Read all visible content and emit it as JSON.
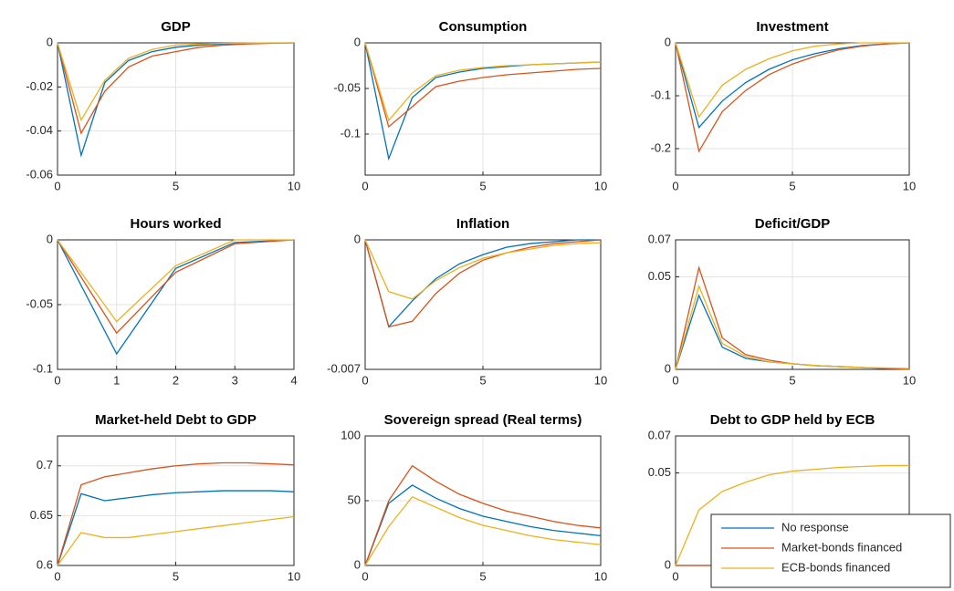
{
  "chart_data": [
    {
      "type": "line",
      "title": "GDP",
      "x": [
        0,
        1,
        2,
        3,
        4,
        5,
        6,
        7,
        8,
        9,
        10
      ],
      "xlim": [
        0,
        10
      ],
      "xticks": [
        0,
        5,
        10
      ],
      "ylim": [
        -0.06,
        0
      ],
      "yticks": [
        -0.06,
        -0.04,
        -0.02,
        0
      ],
      "grid": true,
      "series": [
        {
          "color": "#0072BD",
          "values": [
            0,
            -0.051,
            -0.018,
            -0.008,
            -0.004,
            -0.002,
            -0.001,
            -0.0005,
            -0.0002,
            -0.0001,
            0
          ]
        },
        {
          "color": "#D95319",
          "values": [
            0,
            -0.041,
            -0.022,
            -0.011,
            -0.006,
            -0.004,
            -0.002,
            -0.001,
            -0.0005,
            -0.0002,
            0
          ]
        },
        {
          "color": "#EDB120",
          "values": [
            0,
            -0.035,
            -0.017,
            -0.007,
            -0.003,
            -0.001,
            -0.0005,
            -0.0002,
            -0.0001,
            0,
            0
          ]
        }
      ]
    },
    {
      "type": "line",
      "title": "Consumption",
      "x": [
        0,
        1,
        2,
        3,
        4,
        5,
        6,
        7,
        8,
        9,
        10
      ],
      "xlim": [
        0,
        10
      ],
      "xticks": [
        0,
        5,
        10
      ],
      "ylim": [
        -0.145,
        0
      ],
      "yticks": [
        -0.1,
        -0.05,
        0
      ],
      "grid": true,
      "series": [
        {
          "color": "#0072BD",
          "values": [
            0,
            -0.127,
            -0.06,
            -0.038,
            -0.032,
            -0.028,
            -0.026,
            -0.024,
            -0.023,
            -0.022,
            -0.021
          ]
        },
        {
          "color": "#D95319",
          "values": [
            0,
            -0.092,
            -0.07,
            -0.048,
            -0.042,
            -0.038,
            -0.035,
            -0.033,
            -0.031,
            -0.029,
            -0.028
          ]
        },
        {
          "color": "#EDB120",
          "values": [
            0,
            -0.085,
            -0.055,
            -0.036,
            -0.03,
            -0.027,
            -0.025,
            -0.024,
            -0.023,
            -0.022,
            -0.021
          ]
        }
      ]
    },
    {
      "type": "line",
      "title": "Investment",
      "x": [
        0,
        1,
        2,
        3,
        4,
        5,
        6,
        7,
        8,
        9,
        10
      ],
      "xlim": [
        0,
        10
      ],
      "xticks": [
        0,
        5,
        10
      ],
      "ylim": [
        -0.25,
        0
      ],
      "yticks": [
        -0.2,
        -0.1,
        0
      ],
      "grid": true,
      "series": [
        {
          "color": "#0072BD",
          "values": [
            0,
            -0.16,
            -0.11,
            -0.075,
            -0.05,
            -0.032,
            -0.02,
            -0.011,
            -0.005,
            -0.002,
            0
          ]
        },
        {
          "color": "#D95319",
          "values": [
            0,
            -0.205,
            -0.13,
            -0.09,
            -0.06,
            -0.04,
            -0.025,
            -0.013,
            -0.006,
            -0.002,
            0
          ]
        },
        {
          "color": "#EDB120",
          "values": [
            0,
            -0.14,
            -0.08,
            -0.05,
            -0.03,
            -0.015,
            -0.006,
            -0.002,
            0,
            0,
            0
          ]
        }
      ]
    },
    {
      "type": "line",
      "title": "Hours worked",
      "x": [
        0,
        1,
        2,
        3,
        4
      ],
      "xlim": [
        0,
        4
      ],
      "xticks": [
        0,
        1,
        2,
        3,
        4
      ],
      "ylim": [
        -0.1,
        0
      ],
      "yticks": [
        -0.1,
        -0.05,
        0
      ],
      "grid": true,
      "series": [
        {
          "color": "#0072BD",
          "values": [
            0,
            -0.088,
            -0.022,
            -0.002,
            0
          ]
        },
        {
          "color": "#D95319",
          "values": [
            0,
            -0.072,
            -0.025,
            -0.003,
            0
          ]
        },
        {
          "color": "#EDB120",
          "values": [
            0,
            -0.063,
            -0.02,
            0,
            0
          ]
        }
      ]
    },
    {
      "type": "line",
      "title": "Inflation",
      "x": [
        0,
        1,
        2,
        3,
        4,
        5,
        6,
        7,
        8,
        9,
        10
      ],
      "xlim": [
        0,
        10
      ],
      "xticks": [
        0,
        5,
        10
      ],
      "ylim": [
        -0.007,
        0
      ],
      "yticks": [
        -0.007,
        0
      ],
      "grid": true,
      "series": [
        {
          "color": "#0072BD",
          "values": [
            0,
            -0.0047,
            -0.0033,
            -0.0021,
            -0.0013,
            -0.0008,
            -0.0004,
            -0.0002,
            -0.0001,
            0,
            0
          ]
        },
        {
          "color": "#D95319",
          "values": [
            0,
            -0.0047,
            -0.0044,
            -0.0029,
            -0.0018,
            -0.0011,
            -0.0007,
            -0.0004,
            -0.0002,
            -0.0001,
            0
          ]
        },
        {
          "color": "#EDB120",
          "values": [
            0,
            -0.0028,
            -0.0032,
            -0.0022,
            -0.0015,
            -0.001,
            -0.0007,
            -0.0005,
            -0.0003,
            -0.0002,
            -0.00015
          ]
        }
      ]
    },
    {
      "type": "line",
      "title": "Deficit/GDP",
      "x": [
        0,
        1,
        2,
        3,
        4,
        5,
        6,
        7,
        8,
        9,
        10
      ],
      "xlim": [
        0,
        10
      ],
      "xticks": [
        0,
        5,
        10
      ],
      "ylim": [
        0,
        0.07
      ],
      "yticks": [
        0,
        0.05,
        0.07
      ],
      "grid": true,
      "series": [
        {
          "color": "#0072BD",
          "values": [
            0,
            0.04,
            0.012,
            0.006,
            0.004,
            0.003,
            0.002,
            0.0015,
            0.001,
            0.0005,
            0
          ]
        },
        {
          "color": "#D95319",
          "values": [
            0,
            0.055,
            0.017,
            0.008,
            0.005,
            0.003,
            0.002,
            0.0015,
            0.001,
            0.0005,
            0.0002
          ]
        },
        {
          "color": "#EDB120",
          "values": [
            0,
            0.045,
            0.014,
            0.007,
            0.004,
            0.003,
            0.002,
            0.0015,
            0.001,
            0.0008,
            0.0005
          ]
        }
      ]
    },
    {
      "type": "line",
      "title": "Market-held Debt to GDP",
      "x": [
        0,
        1,
        2,
        3,
        4,
        5,
        6,
        7,
        8,
        9,
        10
      ],
      "xlim": [
        0,
        10
      ],
      "xticks": [
        0,
        5,
        10
      ],
      "ylim": [
        0.6,
        0.73
      ],
      "yticks": [
        0.6,
        0.65,
        0.7
      ],
      "grid": true,
      "series": [
        {
          "color": "#0072BD",
          "values": [
            0.6,
            0.672,
            0.665,
            0.668,
            0.671,
            0.673,
            0.674,
            0.675,
            0.675,
            0.675,
            0.674
          ]
        },
        {
          "color": "#D95319",
          "values": [
            0.6,
            0.681,
            0.689,
            0.693,
            0.697,
            0.7,
            0.702,
            0.703,
            0.703,
            0.702,
            0.701
          ]
        },
        {
          "color": "#EDB120",
          "values": [
            0.6,
            0.633,
            0.628,
            0.628,
            0.631,
            0.634,
            0.637,
            0.64,
            0.643,
            0.646,
            0.649
          ]
        }
      ]
    },
    {
      "type": "line",
      "title": "Sovereign spread (Real terms)",
      "x": [
        0,
        1,
        2,
        3,
        4,
        5,
        6,
        7,
        8,
        9,
        10
      ],
      "xlim": [
        0,
        10
      ],
      "xticks": [
        0,
        5,
        10
      ],
      "ylim": [
        0,
        100
      ],
      "yticks": [
        0,
        50,
        100
      ],
      "grid": true,
      "series": [
        {
          "color": "#0072BD",
          "values": [
            0,
            48,
            62,
            52,
            44,
            38,
            34,
            30,
            27,
            25,
            23
          ]
        },
        {
          "color": "#D95319",
          "values": [
            0,
            50,
            77,
            65,
            55,
            48,
            42,
            38,
            34,
            31,
            29
          ]
        },
        {
          "color": "#EDB120",
          "values": [
            0,
            30,
            53,
            45,
            37,
            31,
            27,
            23,
            20,
            18,
            16
          ]
        }
      ]
    },
    {
      "type": "line",
      "title": "Debt to GDP held by ECB",
      "x": [
        0,
        1,
        2,
        3,
        4,
        5,
        6,
        7,
        8,
        9,
        10
      ],
      "xlim": [
        0,
        10
      ],
      "xticks": [
        0,
        5,
        10
      ],
      "ylim": [
        0,
        0.07
      ],
      "yticks": [
        0,
        0.05,
        0.07
      ],
      "grid": true,
      "legend": "southeast",
      "series": [
        {
          "name": "No response",
          "color": "#0072BD",
          "values": [
            0,
            0,
            0,
            0,
            0,
            0,
            0,
            0,
            0,
            0,
            0
          ]
        },
        {
          "name": "Market-bonds financed",
          "color": "#D95319",
          "values": [
            0,
            0,
            0,
            0,
            0,
            0,
            0,
            0,
            0,
            0,
            0
          ]
        },
        {
          "name": "ECB-bonds financed",
          "color": "#EDB120",
          "values": [
            0,
            0.03,
            0.04,
            0.045,
            0.049,
            0.051,
            0.052,
            0.053,
            0.0535,
            0.054,
            0.054
          ]
        }
      ]
    }
  ]
}
